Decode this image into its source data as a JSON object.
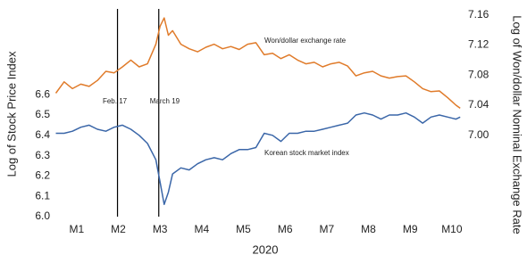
{
  "chart_data": {
    "type": "line",
    "xlabel": "2020",
    "ylabel": "Log of Stock Price Index",
    "y2label": "Log of Won/dollar Nominal Exchange Rate",
    "x": [
      0.5,
      0.7,
      0.9,
      1.1,
      1.3,
      1.5,
      1.7,
      1.9,
      2.1,
      2.3,
      2.5,
      2.7,
      2.9,
      3.0,
      3.1,
      3.2,
      3.3,
      3.5,
      3.7,
      3.9,
      4.1,
      4.3,
      4.5,
      4.7,
      4.9,
      5.1,
      5.3,
      5.5,
      5.7,
      5.9,
      6.1,
      6.3,
      6.5,
      6.7,
      6.9,
      7.1,
      7.3,
      7.5,
      7.7,
      7.9,
      8.1,
      8.3,
      8.5,
      8.7,
      8.9,
      9.1,
      9.3,
      9.5,
      9.7,
      9.9,
      10.1,
      10.2
    ],
    "xlim": [
      0.49,
      10.26
    ],
    "xticks": [
      {
        "value": 1,
        "label": "M1"
      },
      {
        "value": 2,
        "label": "M2"
      },
      {
        "value": 3,
        "label": "M3"
      },
      {
        "value": 4,
        "label": "M4"
      },
      {
        "value": 5,
        "label": "M5"
      },
      {
        "value": 6,
        "label": "M6"
      },
      {
        "value": 7,
        "label": "M7"
      },
      {
        "value": 8,
        "label": "M8"
      },
      {
        "value": 9,
        "label": "M9"
      },
      {
        "value": 10,
        "label": "M10"
      }
    ],
    "ylim": [
      6.0,
      7.0
    ],
    "yticks": [
      {
        "value": 6,
        "label": "6.0"
      },
      6.1,
      6.2,
      6.3,
      6.4,
      6.5,
      6.6
    ],
    "y2lim": [
      6.892,
      7.162
    ],
    "y2ticks": [
      {
        "value": 7,
        "label": "7.00"
      },
      7.04,
      7.08,
      7.12,
      7.16
    ],
    "grid": false,
    "series": [
      {
        "name": "Won/dollar exchange rate",
        "color": "#e07b2a",
        "axis": "y2",
        "values": [
          7.056,
          7.071,
          7.062,
          7.068,
          7.065,
          7.073,
          7.085,
          7.083,
          7.091,
          7.1,
          7.091,
          7.095,
          7.121,
          7.145,
          7.156,
          7.133,
          7.139,
          7.121,
          7.115,
          7.111,
          7.117,
          7.121,
          7.115,
          7.118,
          7.114,
          7.121,
          7.123,
          7.107,
          7.109,
          7.102,
          7.107,
          7.1,
          7.095,
          7.097,
          7.091,
          7.095,
          7.097,
          7.092,
          7.079,
          7.083,
          7.085,
          7.079,
          7.076,
          7.078,
          7.079,
          7.071,
          7.062,
          7.058,
          7.059,
          7.05,
          7.04,
          7.036
        ]
      },
      {
        "name": "Korean stock market index",
        "color": "#3a66a8",
        "values": [
          6.41,
          6.41,
          6.42,
          6.44,
          6.45,
          6.43,
          6.42,
          6.44,
          6.45,
          6.43,
          6.4,
          6.36,
          6.28,
          6.17,
          6.06,
          6.12,
          6.21,
          6.24,
          6.23,
          6.26,
          6.28,
          6.29,
          6.28,
          6.31,
          6.33,
          6.33,
          6.34,
          6.41,
          6.4,
          6.37,
          6.41,
          6.41,
          6.42,
          6.42,
          6.43,
          6.44,
          6.45,
          6.46,
          6.5,
          6.51,
          6.5,
          6.48,
          6.5,
          6.5,
          6.51,
          6.49,
          6.46,
          6.49,
          6.5,
          6.49,
          6.48,
          6.49
        ]
      }
    ],
    "events": [
      {
        "x": 1.98,
        "label": "Feb. 17"
      },
      {
        "x": 2.97,
        "label": "March 19"
      }
    ]
  }
}
